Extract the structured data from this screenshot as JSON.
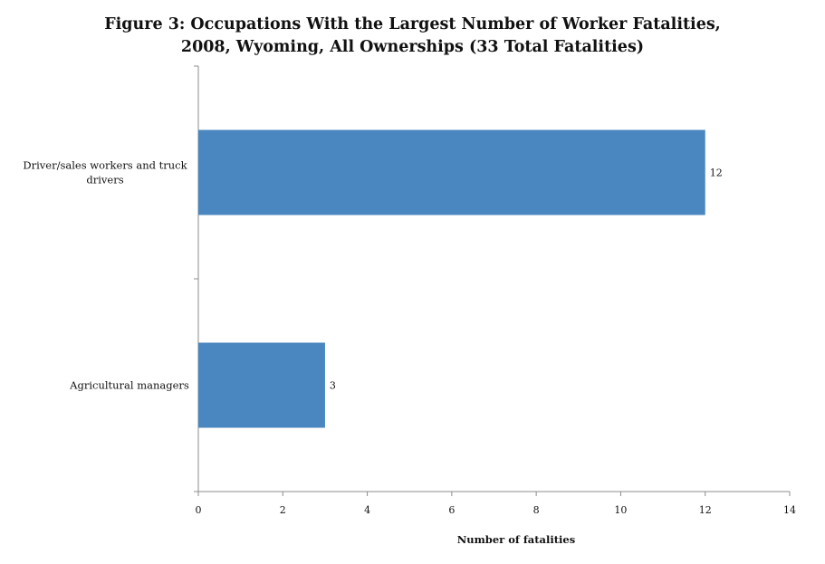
{
  "chart_data": {
    "type": "bar",
    "orientation": "horizontal",
    "title_lines": [
      "Figure 3: Occupations With the Largest Number of Worker Fatalities,",
      "2008, Wyoming, All Ownerships (33 Total Fatalities)"
    ],
    "categories": [
      "Driver/sales workers and truck drivers",
      "Agricultural managers"
    ],
    "category_label_lines": [
      [
        "Driver/sales workers and truck",
        "drivers"
      ],
      [
        "Agricultural managers"
      ]
    ],
    "values": [
      12,
      3
    ],
    "data_labels": [
      "12",
      "3"
    ],
    "xlabel": "Number of fatalities",
    "ylabel": "",
    "xlim": [
      0,
      14
    ],
    "x_ticks": [
      0,
      2,
      4,
      6,
      8,
      10,
      12,
      14
    ],
    "x_tick_labels": [
      "0",
      "2",
      "4",
      "6",
      "8",
      "10",
      "12",
      "14"
    ],
    "grid": false,
    "legend": "none",
    "bar_color": "#4A86BF"
  }
}
